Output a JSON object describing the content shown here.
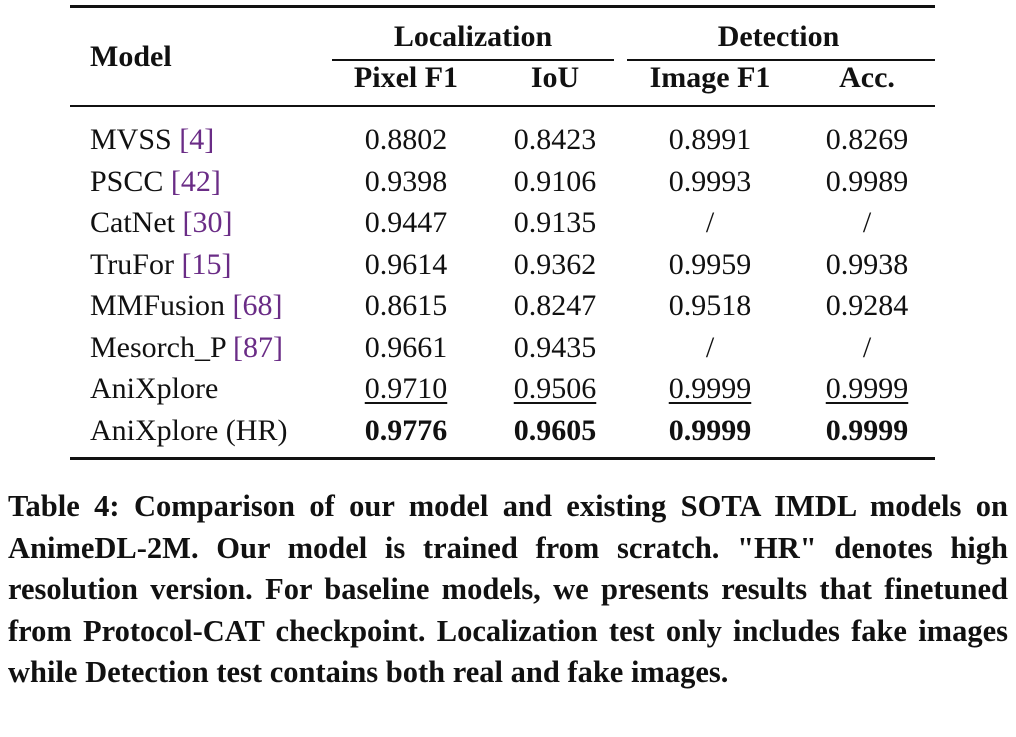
{
  "table": {
    "header": {
      "model": "Model",
      "group_localization": "Localization",
      "group_detection": "Detection",
      "columns": [
        "Pixel F1",
        "IoU",
        "Image F1",
        "Acc."
      ]
    },
    "rows": [
      {
        "model": "MVSS",
        "cite": "4",
        "values": [
          "0.8802",
          "0.8423",
          "0.8991",
          "0.8269"
        ],
        "style": "normal"
      },
      {
        "model": "PSCC",
        "cite": "42",
        "values": [
          "0.9398",
          "0.9106",
          "0.9993",
          "0.9989"
        ],
        "style": "normal"
      },
      {
        "model": "CatNet",
        "cite": "30",
        "values": [
          "0.9447",
          "0.9135",
          "/",
          "/"
        ],
        "style": "normal"
      },
      {
        "model": "TruFor",
        "cite": "15",
        "values": [
          "0.9614",
          "0.9362",
          "0.9959",
          "0.9938"
        ],
        "style": "normal"
      },
      {
        "model": "MMFusion",
        "cite": "68",
        "values": [
          "0.8615",
          "0.8247",
          "0.9518",
          "0.9284"
        ],
        "style": "normal"
      },
      {
        "model": "Mesorch_P",
        "cite": "87",
        "values": [
          "0.9661",
          "0.9435",
          "/",
          "/"
        ],
        "style": "normal"
      },
      {
        "model": "AniXplore",
        "cite": "",
        "values": [
          "0.9710",
          "0.9506",
          "0.9999",
          "0.9999"
        ],
        "style": "underline"
      },
      {
        "model": "AniXplore (HR)",
        "cite": "",
        "values": [
          "0.9776",
          "0.9605",
          "0.9999",
          "0.9999"
        ],
        "style": "bold"
      }
    ]
  },
  "caption": "Table 4: Comparison of our model and existing SOTA IMDL models on AnimeDL-2M. Our model is trained from scratch. \"HR\" denotes high resolution version. For baseline models, we presents results that finetuned from Protocol-CAT checkpoint. Localization test only includes fake images while Detection test contains both real and fake images."
}
